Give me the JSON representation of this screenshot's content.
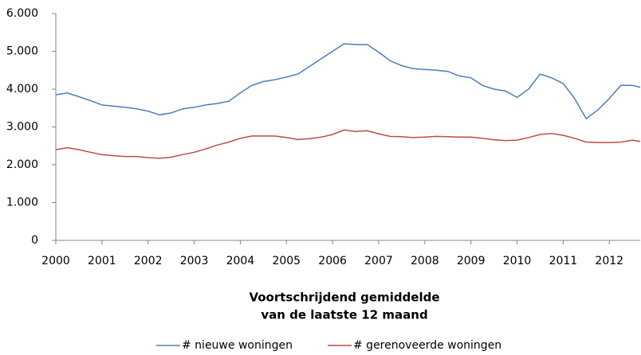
{
  "chart_data": {
    "type": "line",
    "xlabel": [
      "Voortschrijdend gemiddelde",
      "van de laatste 12 maand"
    ],
    "x": [
      2000,
      2000.25,
      2000.5,
      2000.75,
      2001,
      2001.25,
      2001.5,
      2001.75,
      2002,
      2002.25,
      2002.5,
      2002.75,
      2003,
      2003.25,
      2003.5,
      2003.75,
      2004,
      2004.25,
      2004.5,
      2004.75,
      2005,
      2005.25,
      2005.5,
      2005.75,
      2006,
      2006.25,
      2006.5,
      2006.75,
      2007,
      2007.25,
      2007.5,
      2007.75,
      2008,
      2008.25,
      2008.5,
      2008.75,
      2009,
      2009.25,
      2009.5,
      2009.75,
      2010,
      2010.25,
      2010.5,
      2010.75,
      2011,
      2011.25,
      2011.5,
      2011.75,
      2012,
      2012.25,
      2012.5,
      2012.67
    ],
    "series": [
      {
        "name": "# nieuwe woningen",
        "color": "#4a7ebb",
        "values": [
          3850,
          3900,
          3800,
          3700,
          3580,
          3550,
          3520,
          3480,
          3420,
          3320,
          3370,
          3480,
          3520,
          3580,
          3620,
          3680,
          3900,
          4100,
          4200,
          4250,
          4320,
          4400,
          4600,
          4800,
          5000,
          5200,
          5180,
          5180,
          4980,
          4750,
          4620,
          4540,
          4520,
          4500,
          4470,
          4350,
          4300,
          4100,
          4000,
          3950,
          3780,
          4000,
          4400,
          4300,
          4150,
          3750,
          3220,
          3450,
          3750,
          4100,
          4100,
          4050
        ]
      },
      {
        "name": "# gerenoveerde woningen",
        "color": "#be4b48",
        "values": [
          2400,
          2450,
          2400,
          2330,
          2270,
          2240,
          2220,
          2220,
          2190,
          2170,
          2200,
          2270,
          2330,
          2420,
          2520,
          2600,
          2700,
          2760,
          2760,
          2760,
          2720,
          2670,
          2690,
          2730,
          2800,
          2920,
          2880,
          2900,
          2820,
          2750,
          2740,
          2720,
          2730,
          2750,
          2740,
          2730,
          2730,
          2700,
          2660,
          2640,
          2650,
          2720,
          2800,
          2830,
          2780,
          2700,
          2600,
          2590,
          2590,
          2600,
          2650,
          2620
        ]
      }
    ],
    "xlim": [
      2000,
      2012.67
    ],
    "xticks": [
      2000,
      2001,
      2002,
      2003,
      2004,
      2005,
      2006,
      2007,
      2008,
      2009,
      2010,
      2011,
      2012
    ],
    "ylim": [
      0,
      6000
    ],
    "yticks": [
      0,
      {
        "value": 1000,
        "label": "1.000"
      },
      {
        "value": 2000,
        "label": "2.000"
      },
      {
        "value": 3000,
        "label": "3.000"
      },
      {
        "value": 4000,
        "label": "4.000"
      },
      {
        "value": 5000,
        "label": "5.000"
      },
      {
        "value": 6000,
        "label": "6.000"
      }
    ],
    "grid": false,
    "legend": "bottom"
  }
}
